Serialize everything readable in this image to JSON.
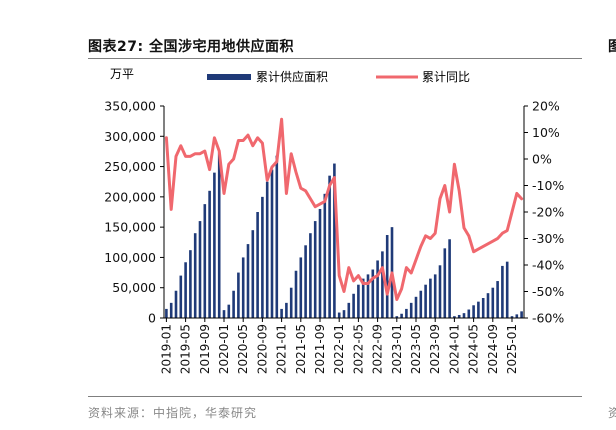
{
  "header": {
    "title": "图表27:  全国涉宅用地供应面积"
  },
  "footer": {
    "source": "资料来源：中指院，华泰研究"
  },
  "edge_fragments": {
    "top": "图",
    "bottom": "资"
  },
  "chart_data": {
    "type": "bar",
    "unit_label": "万平",
    "legend": {
      "bar": "累计供应面积",
      "line": "累计同比",
      "placement": "top"
    },
    "colors": {
      "bar": "#1f3a78",
      "line": "#f0686e"
    },
    "y_left": {
      "min": 0,
      "max": 350000,
      "step": 50000,
      "ticks": [
        "0",
        "50,000",
        "100,000",
        "150,000",
        "200,000",
        "250,000",
        "300,000",
        "350,000"
      ]
    },
    "y_right": {
      "min": -60,
      "max": 20,
      "step": 10,
      "ticks": [
        "-60%",
        "-50%",
        "-40%",
        "-30%",
        "-20%",
        "-10%",
        "0%",
        "10%",
        "20%"
      ]
    },
    "x_tick_labels": [
      "2019-01",
      "2019-05",
      "2019-09",
      "2020-01",
      "2020-05",
      "2020-09",
      "2021-01",
      "2021-05",
      "2021-09",
      "2022-01",
      "2022-05",
      "2022-09",
      "2023-01",
      "2023-05",
      "2023-09",
      "2024-01",
      "2024-05",
      "2024-09",
      "2025-01"
    ],
    "months": [
      "2019-01",
      "2019-02",
      "2019-03",
      "2019-04",
      "2019-05",
      "2019-06",
      "2019-07",
      "2019-08",
      "2019-09",
      "2019-10",
      "2019-11",
      "2019-12",
      "2020-01",
      "2020-02",
      "2020-03",
      "2020-04",
      "2020-05",
      "2020-06",
      "2020-07",
      "2020-08",
      "2020-09",
      "2020-10",
      "2020-11",
      "2020-12",
      "2021-01",
      "2021-02",
      "2021-03",
      "2021-04",
      "2021-05",
      "2021-06",
      "2021-07",
      "2021-08",
      "2021-09",
      "2021-10",
      "2021-11",
      "2021-12",
      "2022-01",
      "2022-02",
      "2022-03",
      "2022-04",
      "2022-05",
      "2022-06",
      "2022-07",
      "2022-08",
      "2022-09",
      "2022-10",
      "2022-11",
      "2022-12",
      "2023-01",
      "2023-02",
      "2023-03",
      "2023-04",
      "2023-05",
      "2023-06",
      "2023-07",
      "2023-08",
      "2023-09",
      "2023-10",
      "2023-11",
      "2023-12",
      "2024-01",
      "2024-02",
      "2024-03",
      "2024-04",
      "2024-05",
      "2024-06",
      "2024-07",
      "2024-08",
      "2024-09",
      "2024-10",
      "2024-11",
      "2024-12",
      "2025-01",
      "2025-02",
      "2025-03"
    ],
    "series": [
      {
        "name": "累计供应面积",
        "type": "bar",
        "axis": "left",
        "values": [
          15000,
          25000,
          45000,
          70000,
          92000,
          112000,
          140000,
          160000,
          188000,
          210000,
          240000,
          273000,
          13000,
          22000,
          45000,
          75000,
          100000,
          122000,
          145000,
          175000,
          200000,
          225000,
          245000,
          268000,
          15000,
          25000,
          50000,
          78000,
          100000,
          120000,
          140000,
          160000,
          180000,
          205000,
          235000,
          255000,
          9000,
          13000,
          25000,
          40000,
          55000,
          65000,
          72000,
          80000,
          95000,
          110000,
          137000,
          150000,
          3000,
          7000,
          15000,
          25000,
          35000,
          45000,
          55000,
          65000,
          72000,
          87000,
          115000,
          130000,
          3000,
          5000,
          8000,
          14000,
          21000,
          27000,
          33000,
          41000,
          50000,
          61000,
          86000,
          93000,
          3000,
          6000,
          11000
        ]
      },
      {
        "name": "累计同比",
        "type": "line",
        "axis": "right",
        "values": [
          8,
          -19,
          1,
          5,
          1,
          1,
          2,
          2,
          3,
          -4,
          8,
          3,
          -13,
          -2,
          0,
          7,
          7,
          9,
          5,
          8,
          6,
          -8,
          -3,
          -1,
          15,
          -13,
          2,
          -5,
          -11,
          -12,
          -15,
          -18,
          -17,
          -16,
          -10,
          -7,
          -44,
          -50,
          -41,
          -46,
          -44,
          -47,
          -47,
          -45,
          -44,
          -41,
          -51,
          -43,
          -53,
          -49,
          -41,
          -43,
          -38,
          -33,
          -29,
          -30,
          -28,
          -15,
          -10,
          -20,
          -2,
          -12,
          -26,
          -29,
          -35,
          -34,
          -33,
          -32,
          -31,
          -30,
          -28,
          -27,
          -20,
          -13,
          -15
        ]
      }
    ]
  }
}
